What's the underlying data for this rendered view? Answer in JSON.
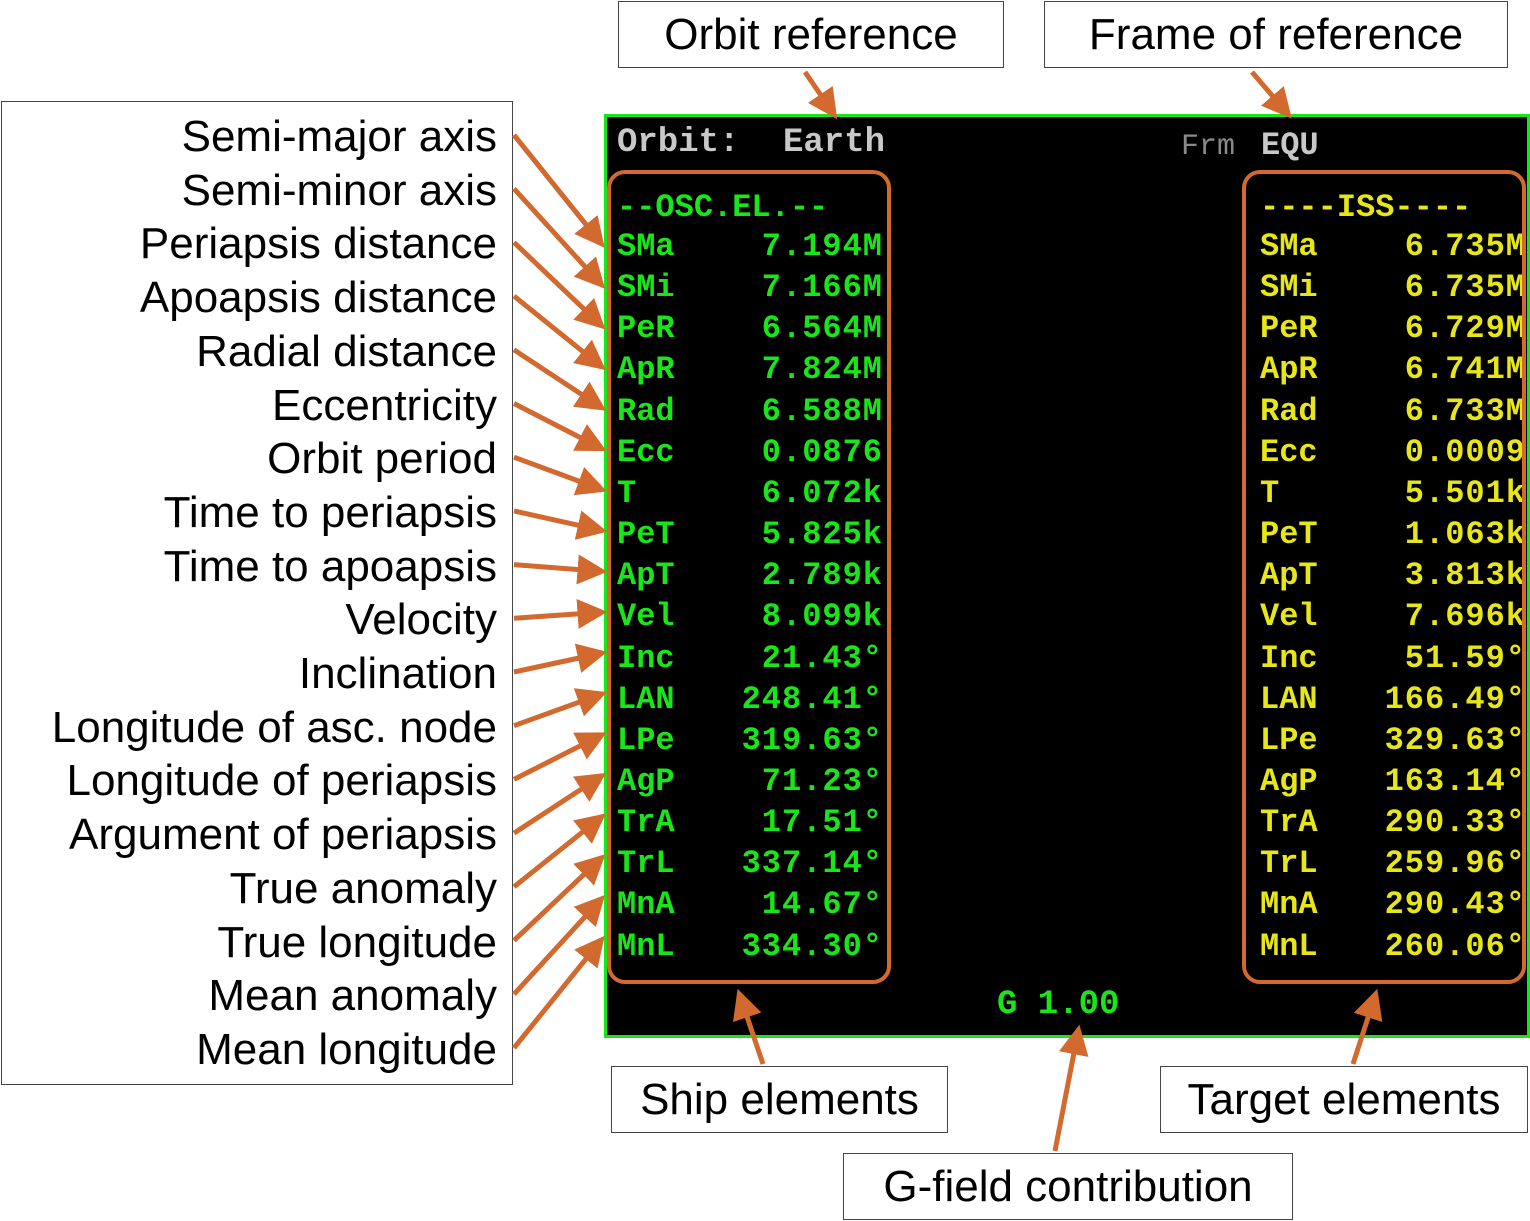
{
  "colors": {
    "accent": "#d2692e",
    "ship": "#19e619",
    "target": "#e6e619",
    "header": "#c8c8c8",
    "border": "#19e619"
  },
  "callouts": {
    "orbit_reference": "Orbit reference",
    "frame_of_reference": "Frame of reference",
    "ship_elements": "Ship elements",
    "target_elements": "Target elements",
    "g_field": "G-field contribution"
  },
  "legend": [
    "Semi-major axis",
    "Semi-minor axis",
    "Periapsis distance",
    "Apoapsis distance",
    "Radial distance",
    "Eccentricity",
    "Orbit period",
    "Time to periapsis",
    "Time to apoapsis",
    "Velocity",
    "Inclination",
    "Longitude of asc. node",
    "Longitude of periapsis",
    "Argument of periapsis",
    "True anomaly",
    "True longitude",
    "Mean anomaly",
    "Mean longitude"
  ],
  "mfd": {
    "orbit_label": "Orbit:",
    "orbit_body": "Earth",
    "frame_label": "Frm",
    "frame_value": "EQU",
    "ship_header": "--OSC.EL.--",
    "target_header": "----ISS----",
    "g_field": "G 1.00",
    "ship_rows": [
      {
        "key": "SMa",
        "value": "7.194M"
      },
      {
        "key": "SMi",
        "value": "7.166M"
      },
      {
        "key": "PeR",
        "value": "6.564M"
      },
      {
        "key": "ApR",
        "value": "7.824M"
      },
      {
        "key": "Rad",
        "value": "6.588M"
      },
      {
        "key": "Ecc",
        "value": "0.0876"
      },
      {
        "key": "T",
        "value": "6.072k"
      },
      {
        "key": "PeT",
        "value": "5.825k"
      },
      {
        "key": "ApT",
        "value": "2.789k"
      },
      {
        "key": "Vel",
        "value": "8.099k"
      },
      {
        "key": "Inc",
        "value": "21.43°"
      },
      {
        "key": "LAN",
        "value": "248.41°"
      },
      {
        "key": "LPe",
        "value": "319.63°"
      },
      {
        "key": "AgP",
        "value": "71.23°"
      },
      {
        "key": "TrA",
        "value": "17.51°"
      },
      {
        "key": "TrL",
        "value": "337.14°"
      },
      {
        "key": "MnA",
        "value": "14.67°"
      },
      {
        "key": "MnL",
        "value": "334.30°"
      }
    ],
    "target_rows": [
      {
        "key": "SMa",
        "value": "6.735M"
      },
      {
        "key": "SMi",
        "value": "6.735M"
      },
      {
        "key": "PeR",
        "value": "6.729M"
      },
      {
        "key": "ApR",
        "value": "6.741M"
      },
      {
        "key": "Rad",
        "value": "6.733M"
      },
      {
        "key": "Ecc",
        "value": "0.0009"
      },
      {
        "key": "T",
        "value": "5.501k"
      },
      {
        "key": "PeT",
        "value": "1.063k"
      },
      {
        "key": "ApT",
        "value": "3.813k"
      },
      {
        "key": "Vel",
        "value": "7.696k"
      },
      {
        "key": "Inc",
        "value": "51.59°"
      },
      {
        "key": "LAN",
        "value": "166.49°"
      },
      {
        "key": "LPe",
        "value": "329.63°"
      },
      {
        "key": "AgP",
        "value": "163.14°"
      },
      {
        "key": "TrA",
        "value": "290.33°"
      },
      {
        "key": "TrL",
        "value": "259.96°"
      },
      {
        "key": "MnA",
        "value": "290.43°"
      },
      {
        "key": "MnL",
        "value": "260.06°"
      }
    ]
  }
}
